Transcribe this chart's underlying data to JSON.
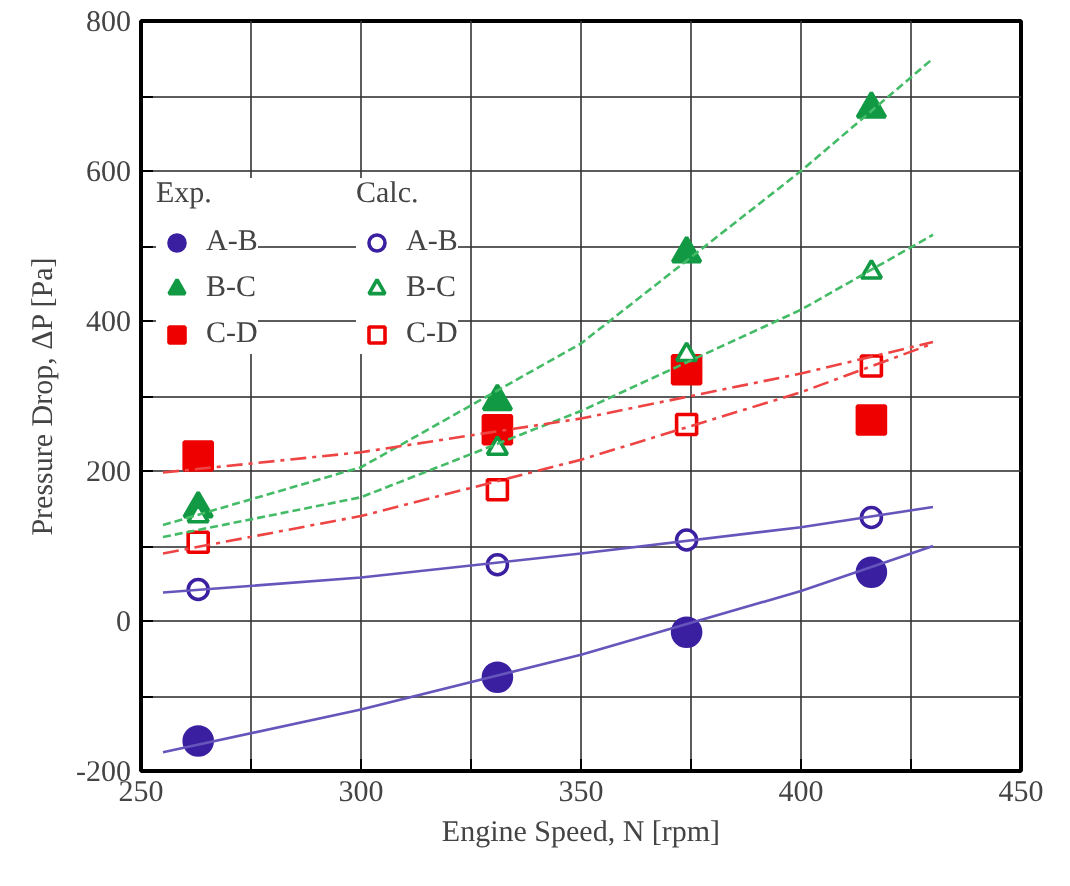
{
  "chart_data": {
    "type": "scatter",
    "xlabel": "Engine Speed, N [rpm]",
    "ylabel": "Pressure Drop, ΔP [Pa]",
    "annotations": [
      "Exp.",
      "Calc."
    ],
    "xlim": [
      250,
      450
    ],
    "ylim": [
      -200,
      800
    ],
    "xticks": [
      250,
      {
        "value": 275,
        "label": null
      },
      300,
      {
        "value": 325,
        "label": null
      },
      350,
      {
        "value": 375,
        "label": null
      },
      400,
      {
        "value": 425,
        "label": null
      },
      450
    ],
    "yticks": [
      -200,
      {
        "value": -100,
        "label": null
      },
      0,
      {
        "value": 100,
        "label": null
      },
      200,
      {
        "value": 300,
        "label": null
      },
      400,
      {
        "value": 500,
        "label": null
      },
      600,
      {
        "value": 700,
        "label": null
      },
      800
    ],
    "grid": true,
    "legend": "top left",
    "x": [
      263,
      331,
      374,
      416
    ],
    "series": [
      {
        "name": "A-B",
        "color": "#3a1fa0",
        "marker": "circle",
        "values": [
          -160,
          -75,
          -15,
          65
        ]
      },
      {
        "name": "B-C",
        "color": "#119944",
        "marker": "triangle",
        "values": [
          150,
          293,
          490,
          683
        ]
      },
      {
        "name": "C-D",
        "color": "#ee0000",
        "marker": "square",
        "values": [
          220,
          255,
          335,
          268
        ]
      },
      {
        "name": "A-B",
        "color": "#3a1fa0",
        "marker": "circle_open",
        "values": [
          42,
          75,
          108,
          138
        ]
      },
      {
        "name": "B-C",
        "color": "#119944",
        "marker": "triangle_open",
        "values": [
          140,
          230,
          355,
          465
        ]
      },
      {
        "name": "C-D",
        "color": "#ee0000",
        "marker": "square_open",
        "values": [
          105,
          175,
          262,
          340
        ]
      },
      {
        "type": "line",
        "color": "#6655bb",
        "line_style": "solid",
        "x": [
          255,
          300,
          350,
          400,
          430
        ],
        "values": [
          -175,
          -118,
          -45,
          40,
          100
        ]
      },
      {
        "type": "line",
        "color": "#6655bb",
        "line_style": "solid",
        "x": [
          255,
          300,
          350,
          400,
          430
        ],
        "values": [
          38,
          58,
          90,
          125,
          152
        ]
      },
      {
        "type": "line",
        "color": "#44bb66",
        "line_style": "dashed",
        "x": [
          255,
          300,
          350,
          400,
          430
        ],
        "values": [
          128,
          205,
          370,
          600,
          750
        ]
      },
      {
        "type": "line",
        "color": "#44bb66",
        "line_style": "dashed",
        "x": [
          255,
          300,
          350,
          400,
          430
        ],
        "values": [
          112,
          165,
          280,
          415,
          515
        ]
      },
      {
        "type": "line",
        "color": "#ee4444",
        "line_style": "dashdot",
        "x": [
          255,
          300,
          350,
          400,
          430
        ],
        "values": [
          198,
          225,
          270,
          330,
          372
        ]
      },
      {
        "type": "line",
        "color": "#ee4444",
        "line_style": "dashdot",
        "x": [
          255,
          300,
          350,
          400,
          430
        ],
        "values": [
          90,
          140,
          215,
          305,
          370
        ]
      }
    ]
  }
}
